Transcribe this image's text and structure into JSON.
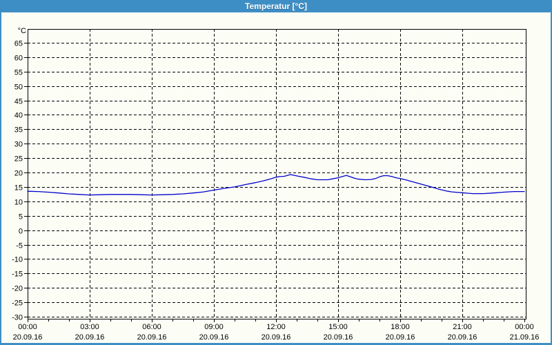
{
  "window": {
    "title": "Temperatur [°C]",
    "colors": {
      "titlebar": "#3E8EC6",
      "titlebar_text": "#FFFFFF",
      "frame": "#3E8EC6",
      "content_background": "#FCFEF6",
      "grid": "#000000",
      "axis": "#000000",
      "label_text": "#000000"
    }
  },
  "chart_data": {
    "type": "line",
    "title": "Temperatur [°C]",
    "y_unit_label": "°C",
    "ylim": [
      -30,
      65
    ],
    "y_tick_step": 5,
    "y_ticks": [
      65,
      60,
      55,
      50,
      45,
      40,
      35,
      30,
      25,
      20,
      15,
      10,
      5,
      0,
      -5,
      -10,
      -15,
      -20,
      -25,
      -30
    ],
    "x_range_hours": [
      0,
      24
    ],
    "x_minor_tick_every_hours": 1,
    "x_major_tick_every_hours": 3,
    "grid_style": "dashed",
    "legend_position": "none",
    "x_major_ticks": [
      {
        "hour": 0,
        "time": "00:00",
        "date": "20.09.16"
      },
      {
        "hour": 3,
        "time": "03:00",
        "date": "20.09.16"
      },
      {
        "hour": 6,
        "time": "06:00",
        "date": "20.09.16"
      },
      {
        "hour": 9,
        "time": "09:00",
        "date": "20.09.16"
      },
      {
        "hour": 12,
        "time": "12:00",
        "date": "20.09.16"
      },
      {
        "hour": 15,
        "time": "15:00",
        "date": "20.09.16"
      },
      {
        "hour": 18,
        "time": "18:00",
        "date": "20.09.16"
      },
      {
        "hour": 21,
        "time": "21:00",
        "date": "20.09.16"
      },
      {
        "hour": 24,
        "time": "00:00",
        "date": "21.09.16"
      }
    ],
    "series": [
      {
        "name": "Temperatur",
        "color": "#0000CC",
        "points_hour_celsius": [
          [
            0,
            13.5
          ],
          [
            0.5,
            13.4
          ],
          [
            1,
            13.2
          ],
          [
            1.5,
            12.9
          ],
          [
            2,
            12.6
          ],
          [
            2.5,
            12.4
          ],
          [
            3,
            12.2
          ],
          [
            3.5,
            12.3
          ],
          [
            4,
            12.4
          ],
          [
            4.5,
            12.4
          ],
          [
            5,
            12.4
          ],
          [
            5.5,
            12.3
          ],
          [
            6,
            12.2
          ],
          [
            6.5,
            12.3
          ],
          [
            7,
            12.4
          ],
          [
            7.5,
            12.6
          ],
          [
            8,
            12.9
          ],
          [
            8.5,
            13.3
          ],
          [
            9,
            13.9
          ],
          [
            9.5,
            14.5
          ],
          [
            10,
            15.0
          ],
          [
            10.5,
            15.8
          ],
          [
            11,
            16.5
          ],
          [
            11.5,
            17.3
          ],
          [
            11.8,
            17.9
          ],
          [
            12,
            18.4
          ],
          [
            12.2,
            18.6
          ],
          [
            12.4,
            18.7
          ],
          [
            12.7,
            19.3
          ],
          [
            12.9,
            19.0
          ],
          [
            13.1,
            18.7
          ],
          [
            13.4,
            18.3
          ],
          [
            13.7,
            17.8
          ],
          [
            14,
            17.5
          ],
          [
            14.5,
            17.5
          ],
          [
            14.8,
            17.9
          ],
          [
            15,
            18.2
          ],
          [
            15.2,
            18.6
          ],
          [
            15.4,
            19.0
          ],
          [
            15.6,
            18.5
          ],
          [
            15.8,
            18.0
          ],
          [
            16,
            17.7
          ],
          [
            16.3,
            17.5
          ],
          [
            16.6,
            17.6
          ],
          [
            16.8,
            17.9
          ],
          [
            17,
            18.5
          ],
          [
            17.2,
            18.9
          ],
          [
            17.4,
            18.9
          ],
          [
            17.6,
            18.6
          ],
          [
            17.8,
            18.2
          ],
          [
            18,
            17.9
          ],
          [
            18.3,
            17.4
          ],
          [
            18.5,
            17.0
          ],
          [
            18.8,
            16.4
          ],
          [
            19,
            16.0
          ],
          [
            19.3,
            15.4
          ],
          [
            19.5,
            15.0
          ],
          [
            19.8,
            14.4
          ],
          [
            20,
            14.0
          ],
          [
            20.3,
            13.5
          ],
          [
            20.5,
            13.3
          ],
          [
            20.8,
            13.1
          ],
          [
            21,
            13.0
          ],
          [
            21.3,
            12.8
          ],
          [
            21.5,
            12.7
          ],
          [
            22,
            12.7
          ],
          [
            22.5,
            12.9
          ],
          [
            23,
            13.2
          ],
          [
            23.5,
            13.4
          ],
          [
            23.8,
            13.4
          ],
          [
            24,
            13.4
          ]
        ]
      }
    ]
  }
}
